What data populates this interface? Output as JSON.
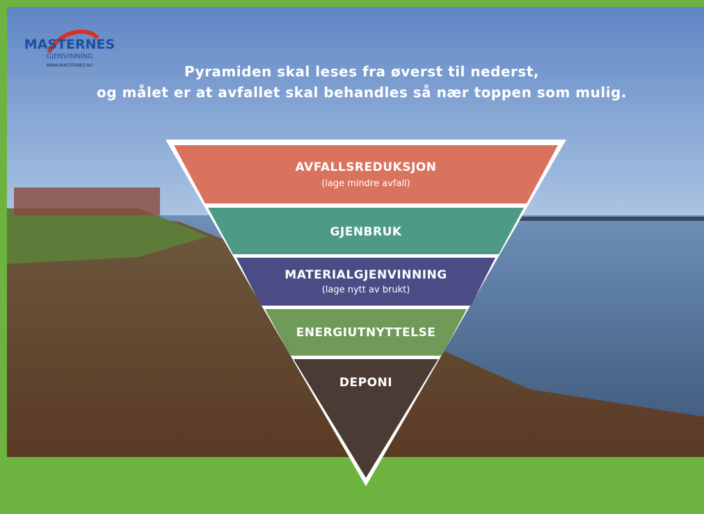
{
  "logo": {
    "name": "MASTERNES",
    "tagline": "GJENVINNING",
    "url": "WWW.MASTERNES.NO"
  },
  "heading": [
    "Pyramiden skal leses fra øverst til nederst,",
    "og målet er at avfallet skal behandles så nær toppen som mulig."
  ],
  "levels": [
    {
      "label": "AVFALLSREDUKSJON",
      "note": "(lage mindre avfall)"
    },
    {
      "label": "GJENBRUK"
    },
    {
      "label": "MATERIALGJENVINNING",
      "note": "(lage nytt av brukt)"
    },
    {
      "label": "ENERGIUTNYTTELSE"
    },
    {
      "label": "DEPONI"
    }
  ]
}
